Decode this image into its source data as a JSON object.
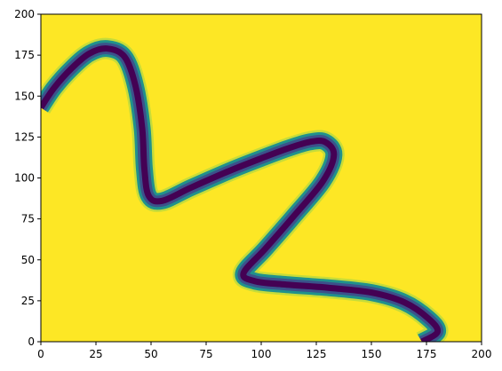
{
  "chart_data": {
    "type": "heatmap",
    "title": "",
    "xlabel": "",
    "ylabel": "",
    "xlim": [
      0,
      200
    ],
    "ylim": [
      0,
      200
    ],
    "x_ticks": [
      "0",
      "25",
      "50",
      "75",
      "100",
      "125",
      "150",
      "175",
      "200"
    ],
    "y_ticks": [
      "0",
      "25",
      "50",
      "75",
      "100",
      "125",
      "150",
      "175",
      "200"
    ],
    "grid": false,
    "colormap": "viridis",
    "colors": {
      "background": "#fde725",
      "band_core": "#440154",
      "band_mid": "#3b528b",
      "band_edge": "#21918c",
      "band_outer": "#5ec962"
    },
    "band_centerline": [
      [
        0,
        143
      ],
      [
        6,
        155
      ],
      [
        14,
        167
      ],
      [
        22,
        176
      ],
      [
        30,
        179
      ],
      [
        38,
        174
      ],
      [
        43,
        156
      ],
      [
        46,
        130
      ],
      [
        47,
        105
      ],
      [
        49,
        89
      ],
      [
        55,
        86
      ],
      [
        68,
        94
      ],
      [
        85,
        104
      ],
      [
        100,
        112
      ],
      [
        112,
        118
      ],
      [
        122,
        122
      ],
      [
        129,
        122
      ],
      [
        133,
        114
      ],
      [
        128,
        98
      ],
      [
        115,
        77
      ],
      [
        102,
        57
      ],
      [
        92,
        42
      ],
      [
        97,
        37
      ],
      [
        110,
        35
      ],
      [
        130,
        33
      ],
      [
        150,
        30
      ],
      [
        165,
        24
      ],
      [
        176,
        14
      ],
      [
        180,
        6
      ],
      [
        173,
        0
      ]
    ]
  }
}
